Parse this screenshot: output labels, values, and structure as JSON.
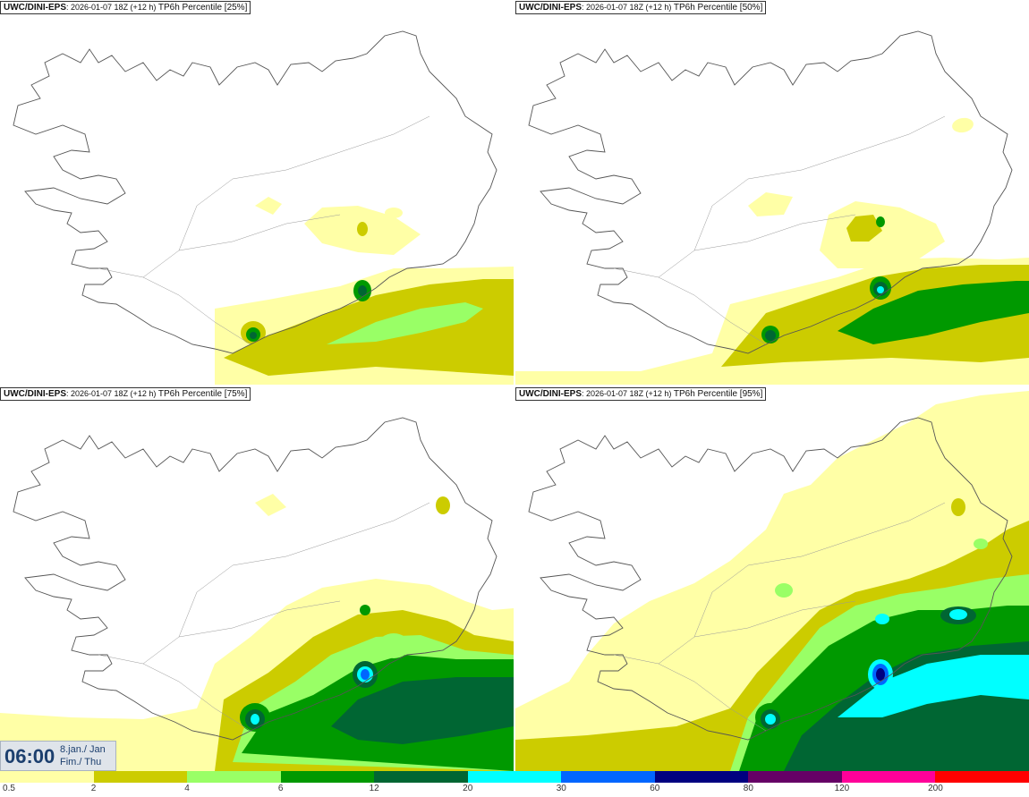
{
  "panels": [
    {
      "model": "UWC/DINI-EPS",
      "run": "2026-01-07 18Z (+12 h)",
      "product": "TP6h Percentile [25%]",
      "level": 1
    },
    {
      "model": "UWC/DINI-EPS",
      "run": "2026-01-07 18Z (+12 h)",
      "product": "TP6h Percentile [50%]",
      "level": 2
    },
    {
      "model": "UWC/DINI-EPS",
      "run": "2026-01-07 18Z (+12 h)",
      "product": "TP6h Percentile [75%]",
      "level": 3
    },
    {
      "model": "UWC/DINI-EPS",
      "run": "2026-01-07 18Z (+12 h)",
      "product": "TP6h Percentile [95%]",
      "level": 4
    }
  ],
  "valid_time": {
    "hour": "06:00",
    "date": "8.jan./ Jan",
    "day": "Fim./ Thu"
  },
  "legend": {
    "colors": [
      "#ffffa6",
      "#cccc00",
      "#99ff66",
      "#009900",
      "#006633",
      "#00ffff",
      "#0066ff",
      "#000080",
      "#660066",
      "#ff0099",
      "#ff0000"
    ],
    "labels": [
      "0.5",
      "2",
      "4",
      "6",
      "12",
      "20",
      "30",
      "60",
      "80",
      "120",
      "200"
    ]
  }
}
